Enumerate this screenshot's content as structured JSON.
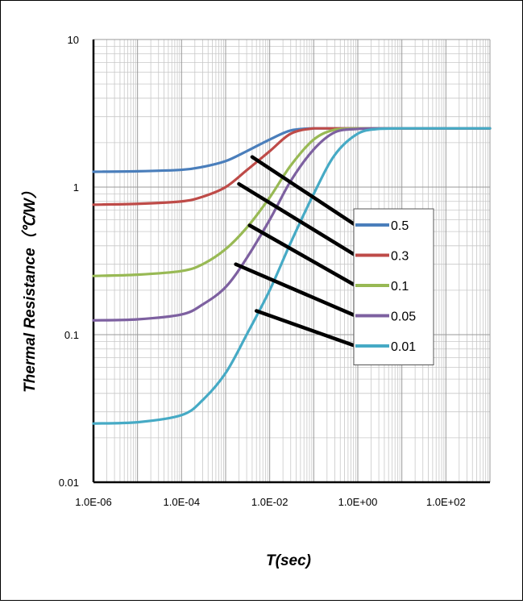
{
  "chart_data": {
    "type": "line",
    "title": "",
    "xlabel": "T(sec)",
    "ylabel": "Thermal Resistance（℃/W）",
    "x_scale": "log",
    "y_scale": "log",
    "xlim": [
      1e-06,
      1000
    ],
    "ylim": [
      0.01,
      10
    ],
    "x_ticks": [
      "1.0E-06",
      "1.0E-04",
      "1.0E-02",
      "1.0E+00",
      "1.0E+02"
    ],
    "x_tick_values": [
      1e-06,
      0.0001,
      0.01,
      1,
      100
    ],
    "y_ticks": [
      "0.01",
      "0.1",
      "1",
      "10"
    ],
    "y_tick_values": [
      0.01,
      0.1,
      1,
      10
    ],
    "grid": true,
    "legend_placement": "center-right",
    "x": [
      1e-06,
      1e-05,
      0.0001,
      0.0003,
      0.001,
      0.003,
      0.01,
      0.03,
      0.1,
      0.3,
      1,
      3,
      10,
      100,
      1000
    ],
    "series": [
      {
        "name": "0.5",
        "color": "#4a7ebb",
        "values": [
          1.27,
          1.28,
          1.31,
          1.37,
          1.5,
          1.75,
          2.1,
          2.42,
          2.5,
          2.5,
          2.5,
          2.5,
          2.5,
          2.5,
          2.5
        ]
      },
      {
        "name": "0.3",
        "color": "#be4b48",
        "values": [
          0.76,
          0.77,
          0.8,
          0.86,
          1.0,
          1.3,
          1.75,
          2.3,
          2.5,
          2.5,
          2.5,
          2.5,
          2.5,
          2.5,
          2.5
        ]
      },
      {
        "name": "0.1",
        "color": "#98b954",
        "values": [
          0.25,
          0.255,
          0.27,
          0.3,
          0.38,
          0.53,
          0.85,
          1.4,
          2.1,
          2.45,
          2.5,
          2.5,
          2.5,
          2.5,
          2.5
        ]
      },
      {
        "name": "0.05",
        "color": "#7d60a0",
        "values": [
          0.125,
          0.127,
          0.137,
          0.16,
          0.21,
          0.33,
          0.6,
          1.1,
          1.8,
          2.35,
          2.48,
          2.5,
          2.5,
          2.5,
          2.5
        ]
      },
      {
        "name": "0.01",
        "color": "#46aac5",
        "values": [
          0.025,
          0.0255,
          0.0285,
          0.036,
          0.055,
          0.1,
          0.2,
          0.42,
          0.9,
          1.65,
          2.3,
          2.48,
          2.5,
          2.5,
          2.5
        ]
      }
    ],
    "legend_pointers": [
      {
        "series": "0.5",
        "from": [
          0.004,
          1.6
        ]
      },
      {
        "series": "0.3",
        "from": [
          0.002,
          1.05
        ]
      },
      {
        "series": "0.1",
        "from": [
          0.0035,
          0.55
        ]
      },
      {
        "series": "0.05",
        "from": [
          0.0017,
          0.3
        ]
      },
      {
        "series": "0.01",
        "from": [
          0.005,
          0.145
        ]
      }
    ]
  }
}
